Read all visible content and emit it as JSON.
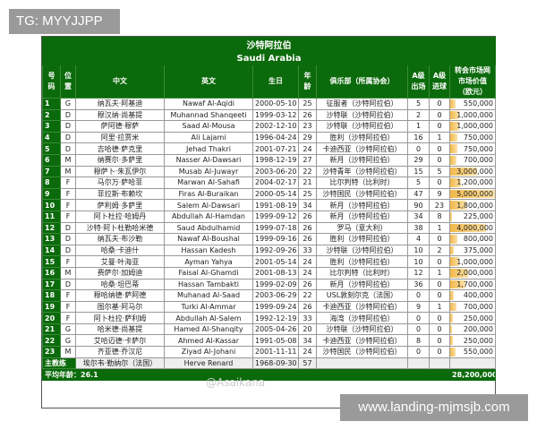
{
  "watermark_top": "TG: MYYJJPP",
  "watermark_bottom": "www.landing-mjmsjb.com",
  "weibo_watermark": "@Asaikana",
  "title_cn": "沙特阿拉伯",
  "title_en": "Saudi Arabia",
  "headers": [
    "号码",
    "位置",
    "中文",
    "英文",
    "生日",
    "年龄",
    "俱乐部（所属协会）",
    "A级出场",
    "A级进球",
    "转会市场网市场价值（欧元）"
  ],
  "max_value": 5000000,
  "bar_color": "#f1b84a",
  "header_color": "#0b6a0b",
  "rows": [
    [
      "1",
      "G",
      "纳瓦夫·阿基迪",
      "Nawaf Al-Aqidi",
      "2000-05-10",
      "25",
      "征服者（沙特阿拉伯）",
      "5",
      "0",
      "550,000"
    ],
    [
      "2",
      "D",
      "穆汉纳·尚基提",
      "Muhannad Shanqeeti",
      "1999-03-12",
      "26",
      "沙特联（沙特阿拉伯）",
      "2",
      "0",
      "1,000,000"
    ],
    [
      "3",
      "D",
      "萨阿德·穆萨",
      "Saad Al-Mousa",
      "2002-12-10",
      "23",
      "沙特联（沙特阿拉伯）",
      "1",
      "0",
      "1,000,000"
    ],
    [
      "4",
      "D",
      "阿里·拉贾米",
      "Ali Lajami",
      "1996-04-24",
      "29",
      "胜利（沙特阿拉伯）",
      "16",
      "1",
      "750,000"
    ],
    [
      "5",
      "D",
      "吉哈德·萨克里",
      "Jehad Thakri",
      "2001-07-21",
      "24",
      "卡迪西亚（沙特阿拉伯）",
      "0",
      "0",
      "750,000"
    ],
    [
      "6",
      "M",
      "纳赛尔·多萨里",
      "Nasser Al-Dawsari",
      "1998-12-19",
      "27",
      "新月（沙特阿拉伯）",
      "29",
      "0",
      "700,000"
    ],
    [
      "7",
      "M",
      "穆萨卜·朱瓦伊尔",
      "Musab Al-Juwayr",
      "2003-06-20",
      "22",
      "沙特青年（沙特阿拉伯）",
      "15",
      "5",
      "3,000,000"
    ],
    [
      "8",
      "F",
      "马尔万·萨哈菲",
      "Marwan Al-Sahafi",
      "2004-02-17",
      "21",
      "比尔判特（比利时）",
      "5",
      "0",
      "1,200,000"
    ],
    [
      "9",
      "F",
      "菲拉斯·布赖坎",
      "Firas Al-Buraikan",
      "2000-05-14",
      "25",
      "沙特国民（沙特阿拉伯）",
      "47",
      "9",
      "5,000,000"
    ],
    [
      "10",
      "F",
      "萨利姆·多萨里",
      "Salem Al-Dawsari",
      "1991-08-19",
      "34",
      "新月（沙特阿拉伯）",
      "90",
      "23",
      "1,800,000"
    ],
    [
      "11",
      "F",
      "阿卜杜拉·哈姆丹",
      "Abdullah Al-Hamdan",
      "1999-09-12",
      "26",
      "新月（沙特阿拉伯）",
      "34",
      "8",
      "225,000"
    ],
    [
      "12",
      "D",
      "沙特·阿卜杜勒哈米德",
      "Saud Abdulhamid",
      "1999-07-18",
      "26",
      "罗马（意大利）",
      "38",
      "1",
      "4,000,000"
    ],
    [
      "13",
      "D",
      "纳瓦夫·布沙勒",
      "Nawaf Al-Boushal",
      "1999-09-16",
      "26",
      "胜利（沙特阿拉伯）",
      "4",
      "0",
      "800,000"
    ],
    [
      "14",
      "D",
      "哈桑·卡迪什",
      "Hassan Kadesh",
      "1992-09-26",
      "33",
      "沙特联（沙特阿拉伯）",
      "10",
      "2",
      "375,000"
    ],
    [
      "15",
      "F",
      "艾曼·叶海亚",
      "Ayman Yahya",
      "2001-05-14",
      "24",
      "胜利（沙特阿拉伯）",
      "10",
      "0",
      "1,000,000"
    ],
    [
      "16",
      "M",
      "费萨尔·加姆迪",
      "Faisal Al-Ghamdi",
      "2001-08-13",
      "24",
      "比尔判特（比利时）",
      "12",
      "1",
      "2,000,000"
    ],
    [
      "17",
      "D",
      "哈桑·坦巴蒂",
      "Hassan Tambakti",
      "1999-02-09",
      "26",
      "新月（沙特阿拉伯）",
      "36",
      "0",
      "1,700,000"
    ],
    [
      "18",
      "F",
      "穆哈纳德·萨阿德",
      "Muhanad Al-Saad",
      "2003-06-29",
      "22",
      "USL敦刻尔克（法国）",
      "0",
      "0",
      "400,000"
    ],
    [
      "19",
      "F",
      "图尔基·阿马尔",
      "Turki Al-Ammar",
      "1999-09-24",
      "26",
      "卡迪西亚（沙特阿拉伯）",
      "9",
      "1",
      "700,000"
    ],
    [
      "20",
      "F",
      "阿卜杜拉·萨利姆",
      "Abdullah Al-Salem",
      "1992-12-19",
      "33",
      "海湾（沙特阿拉伯）",
      "0",
      "0",
      "250,000"
    ],
    [
      "21",
      "G",
      "哈米德·尚基提",
      "Hamed Al-Shanqity",
      "2005-04-26",
      "20",
      "沙特联（沙特阿拉伯）",
      "0",
      "0",
      "200,000"
    ],
    [
      "22",
      "G",
      "艾哈迈德·卡萨尔",
      "Ahmed Al-Kassar",
      "1991-05-08",
      "34",
      "卡迪西亚（沙特阿拉伯）",
      "8",
      "0",
      "250,000"
    ],
    [
      "23",
      "M",
      "齐亚德·乔汉尼",
      "Ziyad Al-Johani",
      "2001-11-11",
      "24",
      "沙特国民（沙特阿拉伯）",
      "0",
      "0",
      "550,000"
    ]
  ],
  "coach": {
    "label": "主教练",
    "cn": "埃尔韦·勒纳尔（法国）",
    "en": "Herve Renard",
    "birth": "1968-09-30",
    "age": "57"
  },
  "footer": {
    "avg_age": "平均年龄：26.1",
    "total": "28,200,000"
  }
}
